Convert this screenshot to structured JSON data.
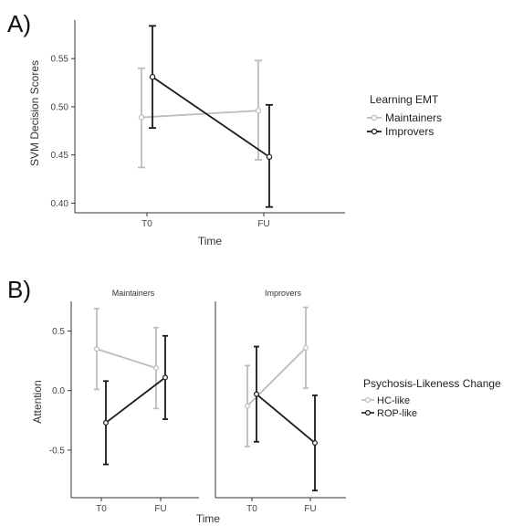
{
  "colors": {
    "light_series": "#bdbdbd",
    "dark_series": "#1a1a1a",
    "axis": "#333333"
  },
  "chart_data": [
    {
      "panel": "A)",
      "type": "line",
      "categories": [
        "T0",
        "FU"
      ],
      "xlabel": "Time",
      "ylabel": "SVM Decision Scores",
      "ylim": [
        0.39,
        0.59
      ],
      "yticks": [
        "0.40",
        "0.45",
        "0.50",
        "0.55"
      ],
      "legend": {
        "title": "Learning EMT",
        "placement": "right"
      },
      "series": [
        {
          "name": "Maintainers",
          "color": "#bdbdbd",
          "values": [
            0.489,
            0.496
          ],
          "lower": [
            0.437,
            0.445
          ],
          "upper": [
            0.54,
            0.548
          ]
        },
        {
          "name": "Improvers",
          "color": "#1a1a1a",
          "values": [
            0.531,
            0.448
          ],
          "lower": [
            0.478,
            0.396
          ],
          "upper": [
            0.584,
            0.502
          ]
        }
      ]
    },
    {
      "panel": "B)",
      "type": "line",
      "facets": [
        "Maintainers",
        "Improvers"
      ],
      "categories": [
        "T0",
        "FU"
      ],
      "xlabel": "Time",
      "ylabel": "Attention",
      "ylim": [
        -0.9,
        0.75
      ],
      "yticks": [
        "-0.5",
        "0.0",
        "0.5"
      ],
      "legend": {
        "title": "Psychosis-Likeness Change",
        "placement": "right"
      },
      "series": [
        {
          "name": "HC-like",
          "color": "#bdbdbd",
          "facet_values": [
            {
              "values": [
                0.35,
                0.19
              ],
              "lower": [
                0.01,
                -0.15
              ],
              "upper": [
                0.69,
                0.53
              ]
            },
            {
              "values": [
                -0.13,
                0.36
              ],
              "lower": [
                -0.47,
                0.02
              ],
              "upper": [
                0.21,
                0.7
              ]
            }
          ]
        },
        {
          "name": "ROP-like",
          "color": "#1a1a1a",
          "facet_values": [
            {
              "values": [
                -0.27,
                0.11
              ],
              "lower": [
                -0.62,
                -0.24
              ],
              "upper": [
                0.08,
                0.46
              ]
            },
            {
              "values": [
                -0.03,
                -0.44
              ],
              "lower": [
                -0.43,
                -0.84
              ],
              "upper": [
                0.37,
                -0.04
              ]
            }
          ]
        }
      ]
    }
  ]
}
